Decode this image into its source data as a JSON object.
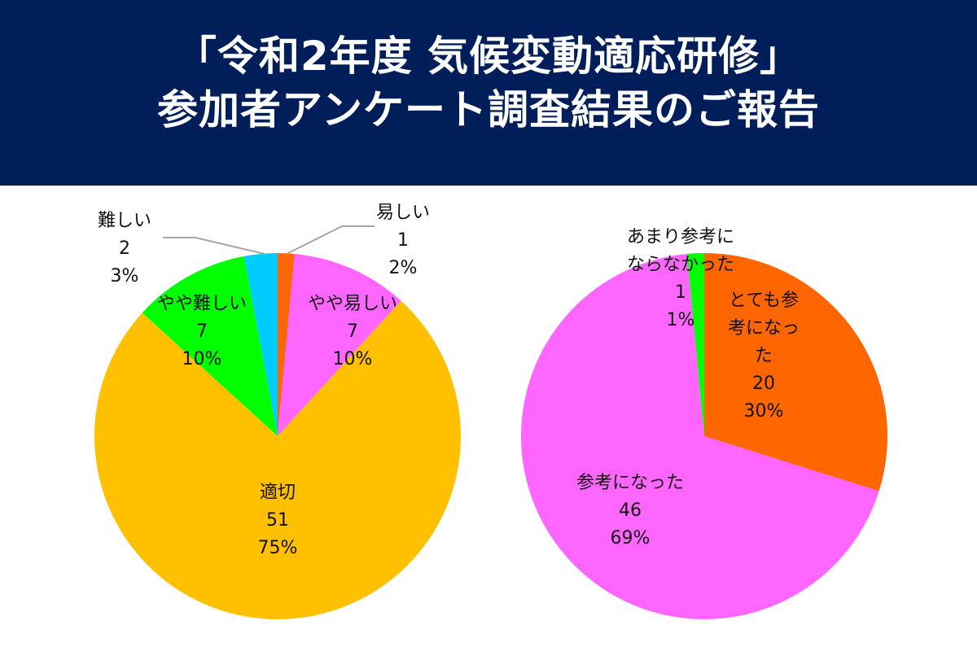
{
  "header": {
    "title_line1": "「令和2年度 気候変動適応研修」",
    "title_line2": "参加者アンケート調査結果のご報告"
  },
  "chart_data": [
    {
      "type": "pie",
      "title": "",
      "slices": [
        {
          "label": "易しい",
          "value": 1,
          "percent": "2%",
          "color": "#FF6600"
        },
        {
          "label": "やや易しい",
          "value": 7,
          "percent": "10%",
          "color": "#FF66FF"
        },
        {
          "label": "適切",
          "value": 51,
          "percent": "75%",
          "color": "#FFC000"
        },
        {
          "label": "やや難しい",
          "value": 7,
          "percent": "10%",
          "color": "#00FF00"
        },
        {
          "label": "難しい",
          "value": 2,
          "percent": "3%",
          "color": "#00CCFF"
        }
      ]
    },
    {
      "type": "pie",
      "title": "",
      "slices": [
        {
          "label": "とても参考になった",
          "value": 20,
          "percent": "30%",
          "color": "#FF6600"
        },
        {
          "label": "参考になった",
          "value": 46,
          "percent": "69%",
          "color": "#FF66FF"
        },
        {
          "label": "あまり参考にならなかった",
          "value": 1,
          "percent": "1%",
          "color": "#00FF00"
        }
      ]
    }
  ]
}
